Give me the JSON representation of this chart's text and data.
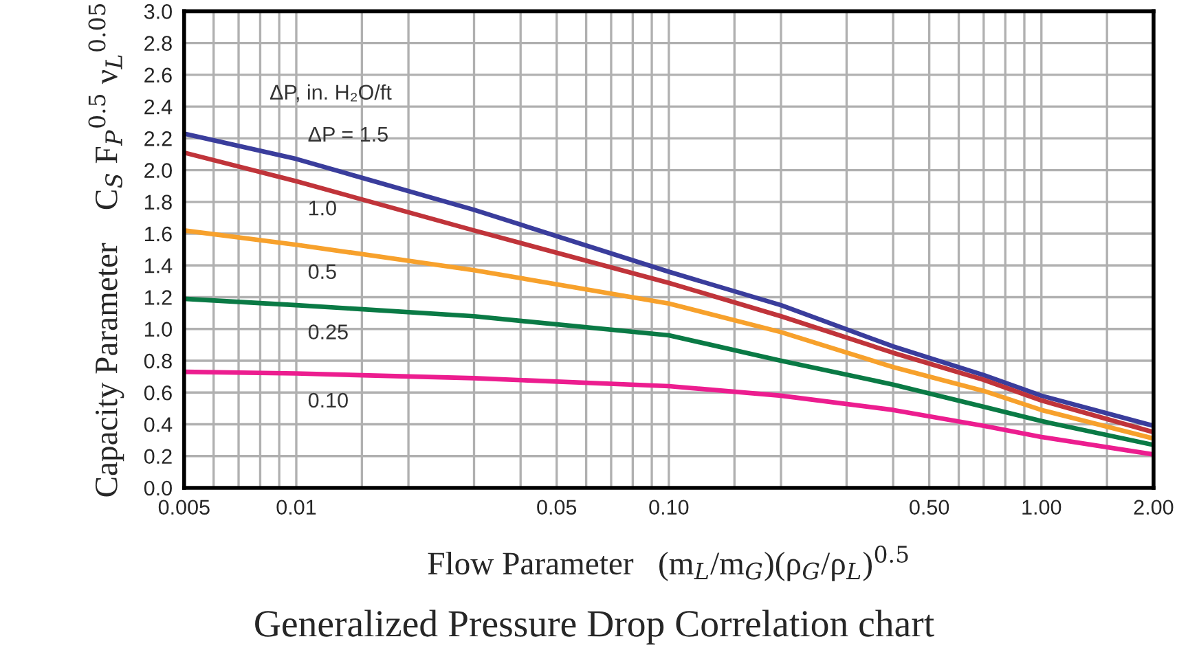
{
  "chart_data": {
    "type": "line",
    "title": "Generalized Pressure Drop Correlation chart",
    "xlabel": "Flow Parameter   (m$_{L}$/m$_{G}$)(ρ$_{G}$/ρ$_{L}$)$^{0.5}$",
    "ylabel": "Capacity Parameter    C$_{S}$ F$_{P}$$^{0.5}$ ν$_{L}$$^{0.05}$",
    "legend_title": "ΔP, in. H₂O/ft",
    "x": [
      0.005,
      0.01,
      0.03,
      0.1,
      0.2,
      0.4,
      0.7,
      1.0,
      2.0
    ],
    "series": [
      {
        "name": "ΔP = 1.5",
        "color": "#3a3d9c",
        "values": [
          2.23,
          2.07,
          1.75,
          1.36,
          1.15,
          0.89,
          0.71,
          0.58,
          0.39
        ]
      },
      {
        "name": "1.0",
        "color": "#c0343a",
        "values": [
          2.11,
          1.93,
          1.62,
          1.29,
          1.08,
          0.85,
          0.68,
          0.55,
          0.35
        ]
      },
      {
        "name": "0.5",
        "color": "#f7a12c",
        "values": [
          1.62,
          1.53,
          1.37,
          1.16,
          0.98,
          0.76,
          0.61,
          0.49,
          0.31
        ]
      },
      {
        "name": "0.25",
        "color": "#0a7a45",
        "values": [
          1.19,
          1.15,
          1.08,
          0.96,
          0.8,
          0.65,
          0.51,
          0.42,
          0.27
        ]
      },
      {
        "name": "0.10",
        "color": "#ec1d8f",
        "values": [
          0.73,
          0.72,
          0.69,
          0.64,
          0.58,
          0.49,
          0.39,
          0.32,
          0.21
        ]
      }
    ],
    "log": "x",
    "xlim": [
      0.005,
      2.0
    ],
    "xticks": [
      0.005,
      {
        "value": 0.006,
        "label": null
      },
      {
        "value": 0.007,
        "label": null
      },
      {
        "value": 0.008,
        "label": null
      },
      {
        "value": 0.009,
        "label": null
      },
      0.01,
      {
        "value": 0.015,
        "label": null
      },
      {
        "value": 0.02,
        "label": null
      },
      {
        "value": 0.03,
        "label": null
      },
      {
        "value": 0.04,
        "label": null
      },
      0.05,
      {
        "value": 0.06,
        "label": null
      },
      {
        "value": 0.07,
        "label": null
      },
      {
        "value": 0.08,
        "label": null
      },
      {
        "value": 0.09,
        "label": null
      },
      {
        "value": 0.1,
        "label": "0.10"
      },
      {
        "value": 0.15,
        "label": null
      },
      {
        "value": 0.2,
        "label": null
      },
      {
        "value": 0.3,
        "label": null
      },
      {
        "value": 0.4,
        "label": null
      },
      {
        "value": 0.5,
        "label": "0.50"
      },
      {
        "value": 0.6,
        "label": null
      },
      {
        "value": 0.7,
        "label": null
      },
      {
        "value": 0.8,
        "label": null
      },
      {
        "value": 0.9,
        "label": null
      },
      {
        "value": 1,
        "label": "1.00"
      },
      {
        "value": 1.5,
        "label": null
      },
      {
        "value": 2,
        "label": "2.00"
      }
    ],
    "ylim": [
      0,
      3.0
    ],
    "yticks": [
      {
        "value": 0,
        "label": "0.0"
      },
      0.2,
      0.4,
      0.6,
      0.8,
      {
        "value": 1,
        "label": "1.0"
      },
      1.2,
      1.4,
      1.6,
      1.8,
      {
        "value": 2,
        "label": "2.0"
      },
      2.2,
      2.4,
      2.6,
      2.8,
      {
        "value": 3,
        "label": "3.0"
      }
    ],
    "grid": true,
    "legend": false,
    "line_style": "solid",
    "marker": "none"
  }
}
